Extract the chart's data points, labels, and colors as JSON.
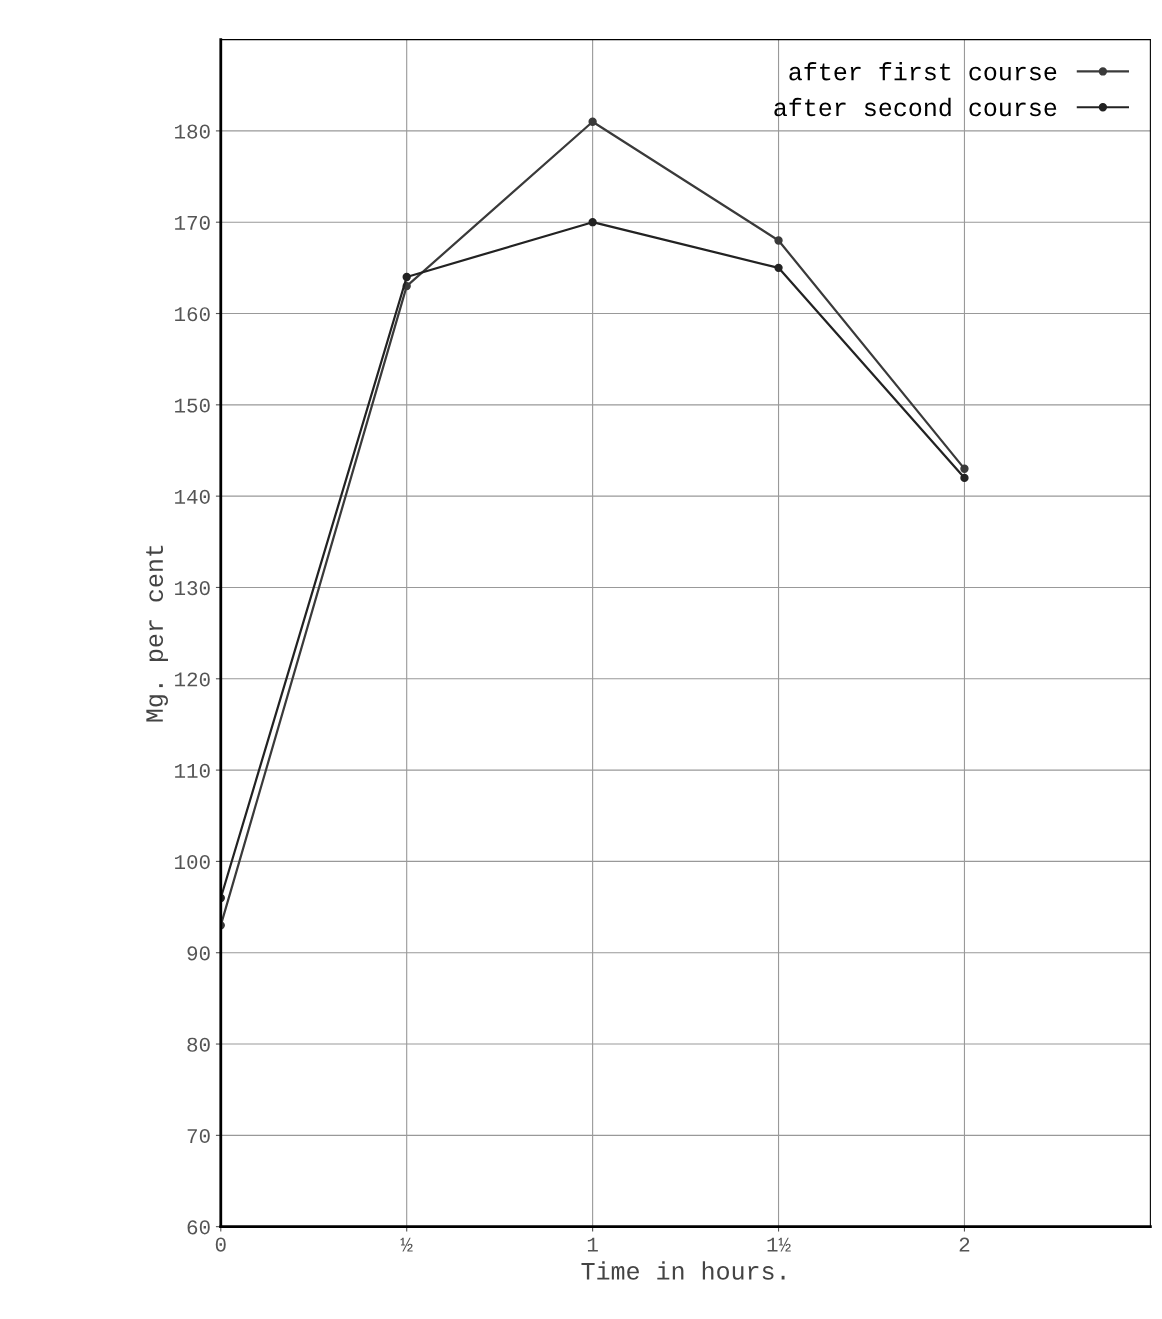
{
  "chart_data": {
    "type": "line",
    "xlabel": "Time in hours.",
    "ylabel": "Mg. per cent",
    "x": [
      0,
      0.5,
      1,
      1.5,
      2
    ],
    "series": [
      {
        "name": "after first course",
        "color": "#3a3a3a",
        "values": [
          93,
          163,
          181,
          168,
          143
        ]
      },
      {
        "name": "after second course",
        "color": "#222222",
        "values": [
          96,
          164,
          170,
          165,
          142
        ]
      }
    ],
    "xlim": [
      0,
      2.5
    ],
    "xticks": [
      {
        "value": 0,
        "label": "0"
      },
      {
        "value": 0.5,
        "label": "½"
      },
      {
        "value": 1,
        "label": "1"
      },
      {
        "value": 1.5,
        "label": "1½"
      },
      {
        "value": 2,
        "label": "2"
      }
    ],
    "ylim": [
      60,
      190
    ],
    "yticks": [
      60,
      70,
      80,
      90,
      100,
      110,
      120,
      130,
      140,
      150,
      160,
      170,
      180
    ],
    "grid": true,
    "legend": "top right",
    "marker": "circle",
    "line_style": "solid"
  }
}
